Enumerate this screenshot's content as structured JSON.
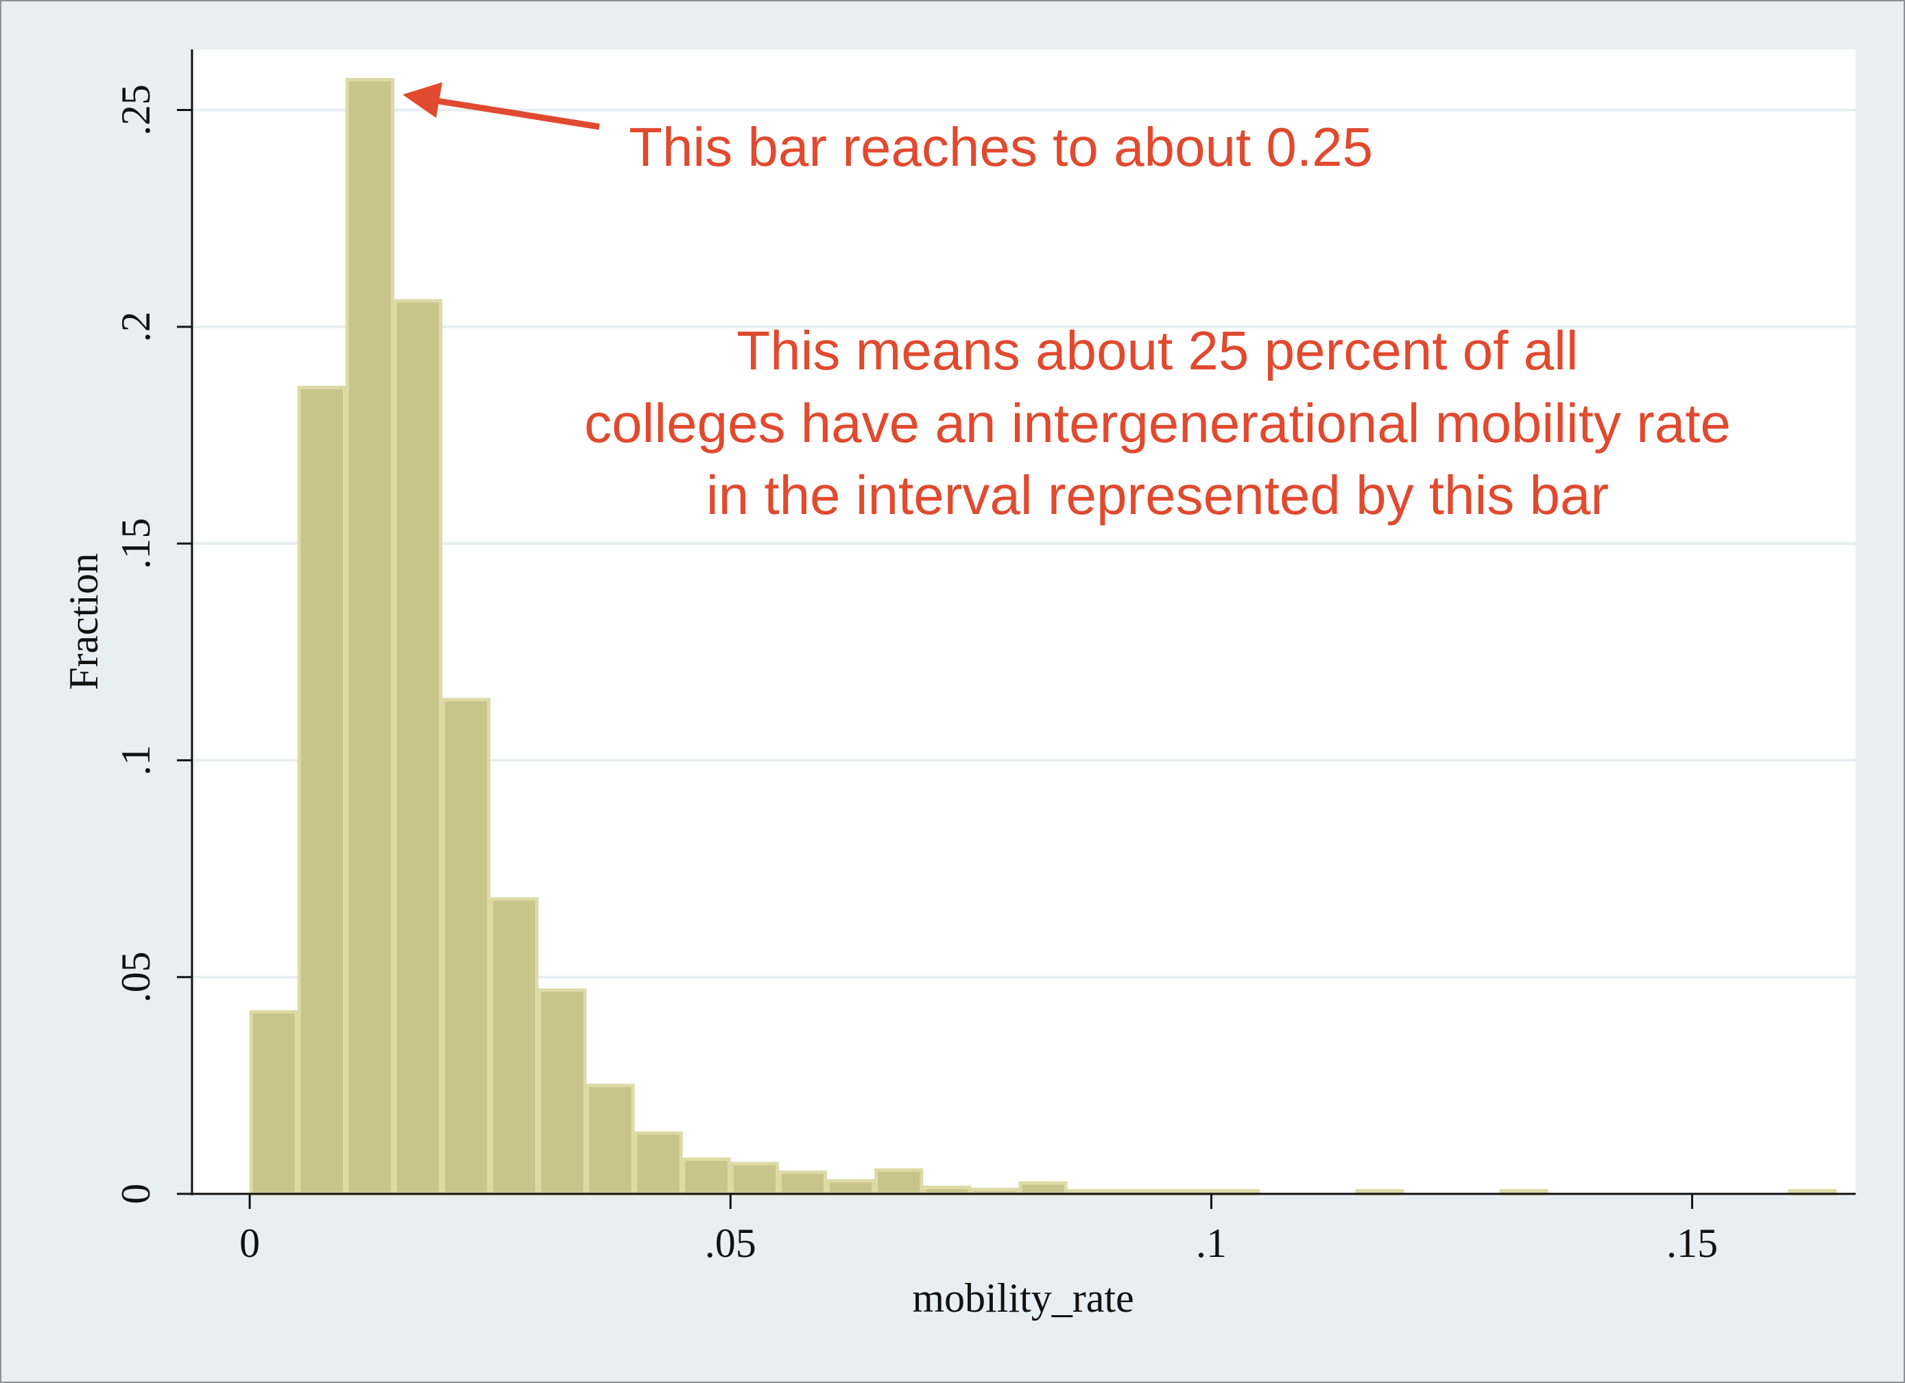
{
  "chart_data": {
    "type": "bar",
    "xlabel": "mobility_rate",
    "ylabel": "Fraction",
    "xlim": [
      -0.006,
      0.167
    ],
    "ylim": [
      0,
      0.264
    ],
    "grid": true,
    "bar_width": 0.005,
    "bins": [
      {
        "x": 0.0,
        "value": 0.042
      },
      {
        "x": 0.005,
        "value": 0.186
      },
      {
        "x": 0.01,
        "value": 0.257
      },
      {
        "x": 0.015,
        "value": 0.206
      },
      {
        "x": 0.02,
        "value": 0.114
      },
      {
        "x": 0.025,
        "value": 0.068
      },
      {
        "x": 0.03,
        "value": 0.047
      },
      {
        "x": 0.035,
        "value": 0.025
      },
      {
        "x": 0.04,
        "value": 0.014
      },
      {
        "x": 0.045,
        "value": 0.008
      },
      {
        "x": 0.05,
        "value": 0.007
      },
      {
        "x": 0.055,
        "value": 0.005
      },
      {
        "x": 0.06,
        "value": 0.003
      },
      {
        "x": 0.065,
        "value": 0.0055
      },
      {
        "x": 0.07,
        "value": 0.0015
      },
      {
        "x": 0.075,
        "value": 0.001
      },
      {
        "x": 0.08,
        "value": 0.0025
      },
      {
        "x": 0.085,
        "value": 0.0007
      },
      {
        "x": 0.09,
        "value": 0.0007
      },
      {
        "x": 0.095,
        "value": 0.0007
      },
      {
        "x": 0.1,
        "value": 0.0007
      },
      {
        "x": 0.115,
        "value": 0.0007
      },
      {
        "x": 0.13,
        "value": 0.0007
      },
      {
        "x": 0.16,
        "value": 0.0007
      }
    ],
    "x_ticks": [
      {
        "value": 0,
        "label": "0"
      },
      {
        "value": 0.05,
        "label": ".05"
      },
      {
        "value": 0.1,
        "label": ".1"
      },
      {
        "value": 0.15,
        "label": ".15"
      }
    ],
    "y_ticks": [
      {
        "value": 0,
        "label": "0"
      },
      {
        "value": 0.05,
        "label": ".05"
      },
      {
        "value": 0.1,
        "label": ".1"
      },
      {
        "value": 0.15,
        "label": ".15"
      },
      {
        "value": 0.2,
        "label": ".2"
      },
      {
        "value": 0.25,
        "label": ".25"
      }
    ],
    "annotations": {
      "arrow_label": "This bar reaches to about 0.25",
      "explanation": [
        "This means about 25 percent of all",
        "colleges have an intergenerational mobility rate",
        "in the interval represented by this bar"
      ]
    }
  },
  "colors": {
    "bar_fill": "#c9c48b",
    "bar_stroke": "#dedaa6",
    "gridline": "#e6eef1",
    "annotation": "#e04a2f",
    "outer_background": "#e8eef1",
    "plot_background": "#ffffff"
  }
}
